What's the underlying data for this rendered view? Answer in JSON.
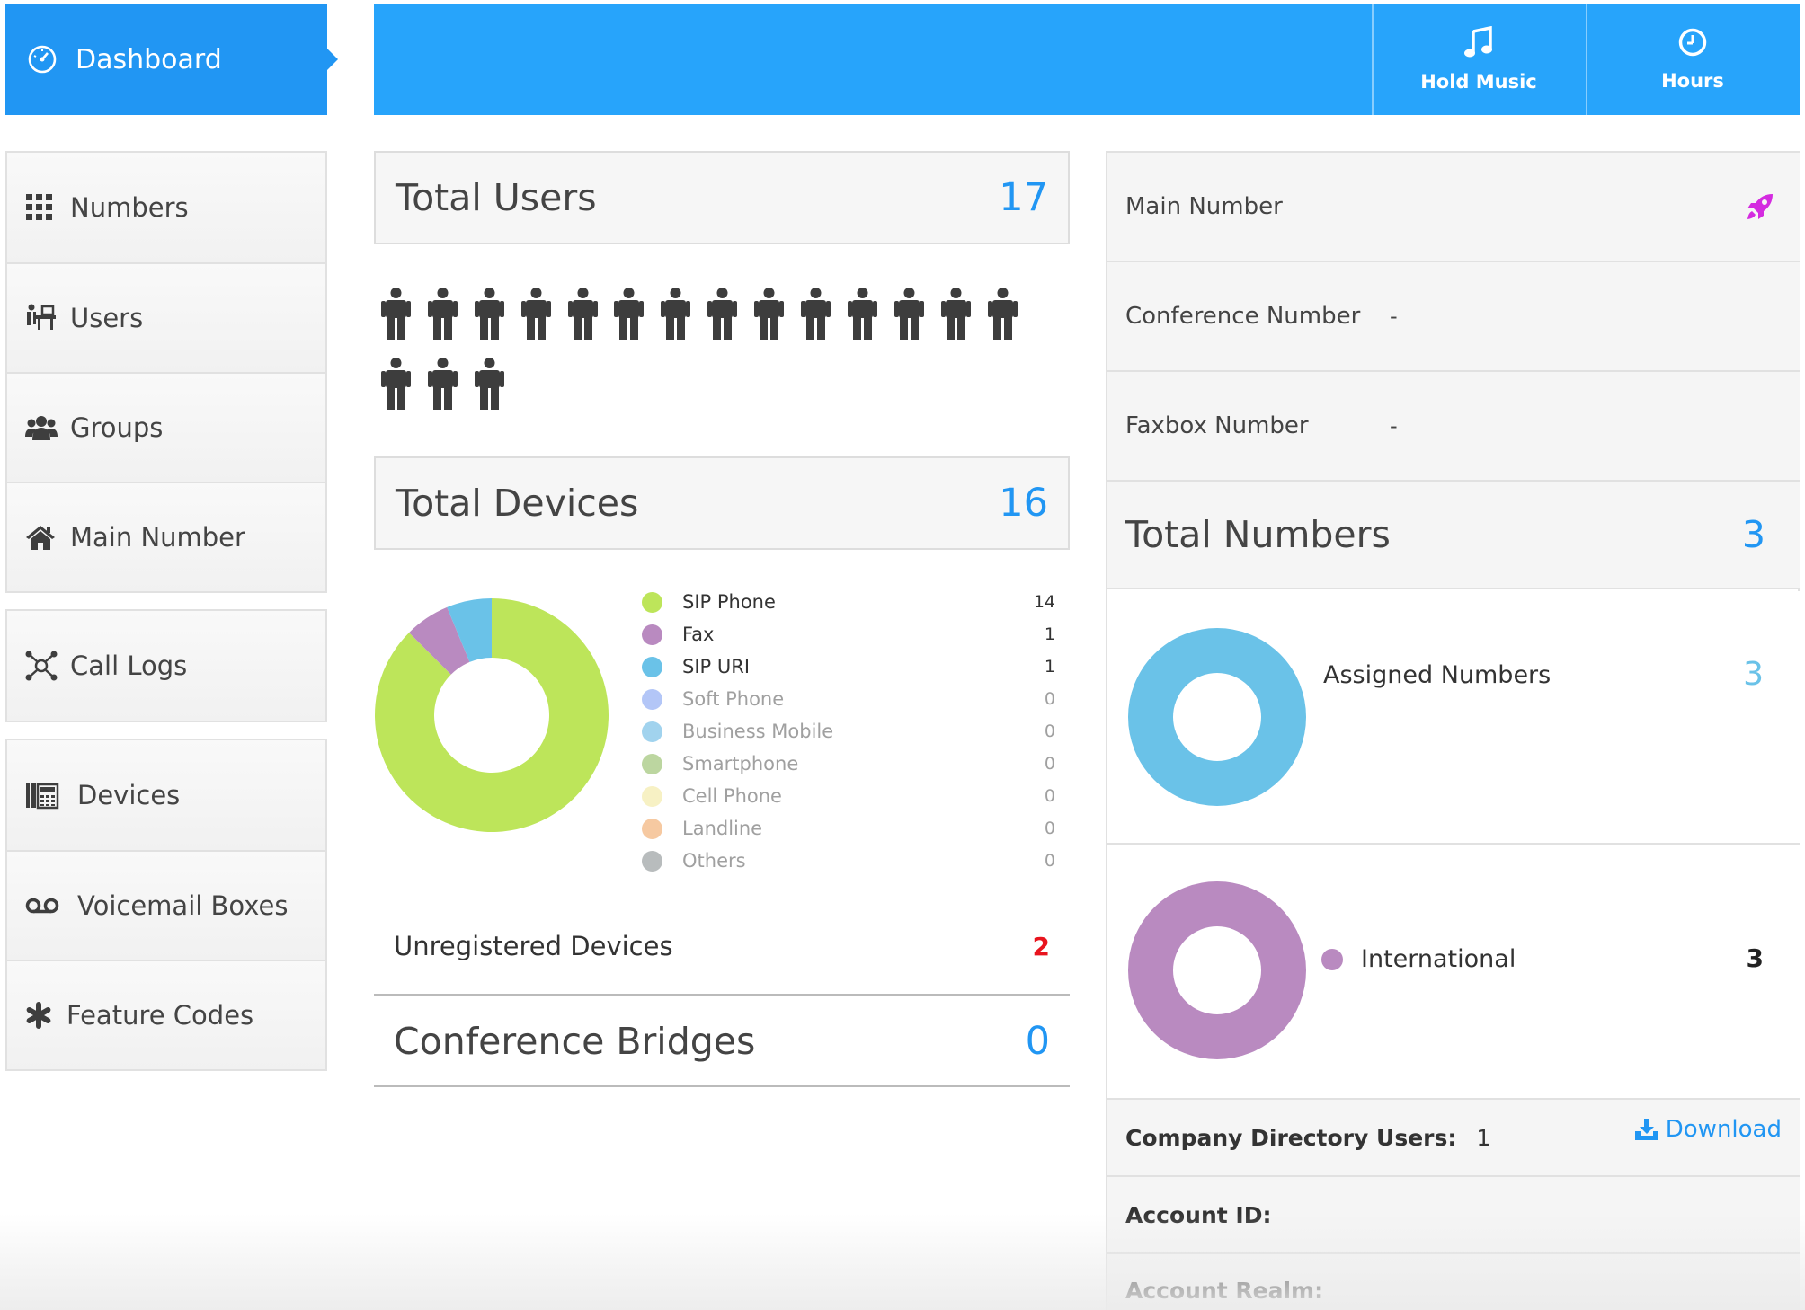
{
  "header": {
    "dashboard_label": "Dashboard",
    "hold_music_label": "Hold Music",
    "hours_label": "Hours"
  },
  "sidebar": {
    "items": [
      {
        "label": "Numbers",
        "icon": "grid-icon"
      },
      {
        "label": "Users",
        "icon": "users-desk-icon"
      },
      {
        "label": "Groups",
        "icon": "group-icon"
      },
      {
        "label": "Main Number",
        "icon": "home-icon"
      },
      {
        "label": "Call Logs",
        "icon": "network-icon"
      },
      {
        "label": "Devices",
        "icon": "phone-device-icon"
      },
      {
        "label": "Voicemail Boxes",
        "icon": "voicemail-icon"
      },
      {
        "label": "Feature Codes",
        "icon": "asterisk-icon"
      }
    ]
  },
  "users": {
    "title": "Total Users",
    "count": "17",
    "icon_count": 17
  },
  "devices": {
    "title": "Total Devices",
    "count": "16",
    "legend": [
      {
        "label": "SIP Phone",
        "value": "14",
        "color": "#bde55a"
      },
      {
        "label": "Fax",
        "value": "1",
        "color": "#b98ac0"
      },
      {
        "label": "SIP URI",
        "value": "1",
        "color": "#6ac2e8"
      },
      {
        "label": "Soft Phone",
        "value": "0",
        "color": "#b3c6f7"
      },
      {
        "label": "Business Mobile",
        "value": "0",
        "color": "#a1d3ee"
      },
      {
        "label": "Smartphone",
        "value": "0",
        "color": "#bcd6a0"
      },
      {
        "label": "Cell Phone",
        "value": "0",
        "color": "#f7f1c4"
      },
      {
        "label": "Landline",
        "value": "0",
        "color": "#f6c9a1"
      },
      {
        "label": "Others",
        "value": "0",
        "color": "#b8bcbd"
      }
    ],
    "unregistered_label": "Unregistered Devices",
    "unregistered_count": "2"
  },
  "conference_bridges": {
    "label": "Conference Bridges",
    "count": "0"
  },
  "right": {
    "main_number_label": "Main Number",
    "conference_number_label": "Conference Number",
    "conference_number_value": "-",
    "faxbox_number_label": "Faxbox Number",
    "faxbox_number_value": "-",
    "total_numbers_label": "Total Numbers",
    "total_numbers_count": "3",
    "assigned_label": "Assigned Numbers",
    "assigned_count": "3",
    "assigned_color": "#6ac2e8",
    "international_label": "International",
    "international_count": "3",
    "international_color": "#b98ac0",
    "company_directory_label": "Company Directory Users:",
    "company_directory_value": "1",
    "download_label": "Download",
    "account_id_label": "Account ID:",
    "account_realm_label": "Account Realm:"
  },
  "colors": {
    "accent": "#2196f3",
    "topbar": "#27a4fb",
    "alert": "#e8141e",
    "rocket": "#d42be0"
  }
}
